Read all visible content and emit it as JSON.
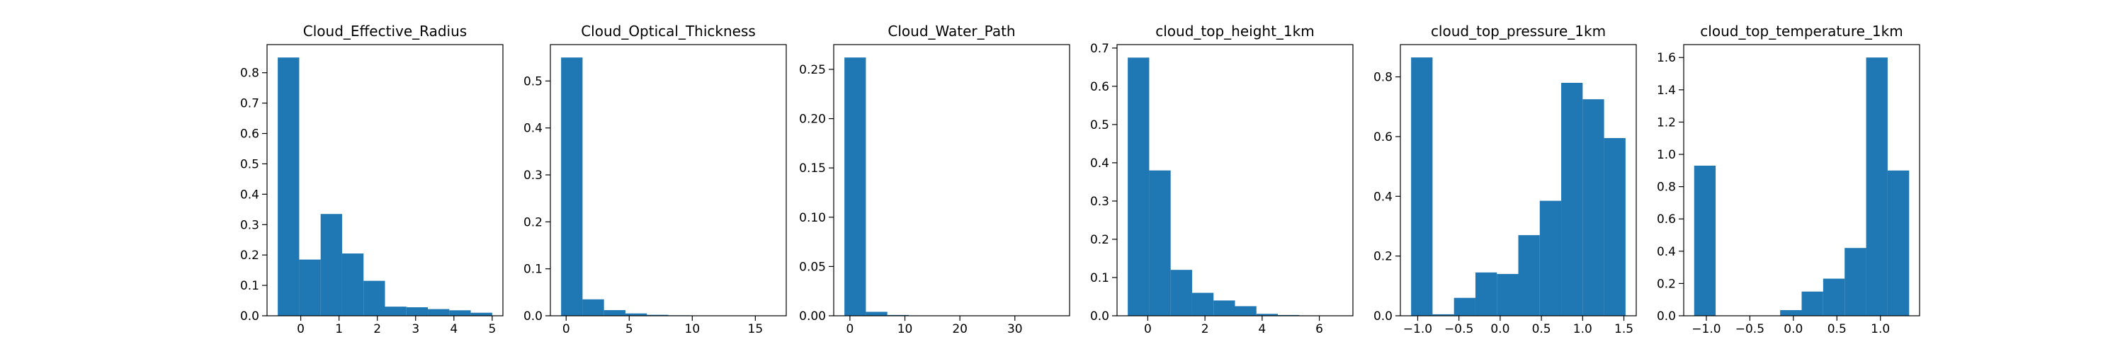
{
  "chart_data": [
    {
      "type": "histogram",
      "title": "Cloud_Effective_Radius",
      "color": "#1f77b4",
      "bins": [
        -0.6,
        -0.04,
        0.52,
        1.08,
        1.64,
        2.2,
        2.76,
        3.32,
        3.88,
        4.44,
        5.0
      ],
      "values": [
        0.85,
        0.185,
        0.335,
        0.205,
        0.115,
        0.03,
        0.028,
        0.022,
        0.018,
        0.01
      ],
      "xlim": [
        -0.88,
        5.28
      ],
      "xticks": [
        0,
        1,
        2,
        3,
        4,
        5
      ],
      "ylim": [
        0,
        0.8925
      ],
      "yticks": [
        {
          "value": 0,
          "label": "0.0"
        },
        0.1,
        0.2,
        0.3,
        0.4,
        0.5,
        0.6,
        0.7,
        0.8
      ]
    },
    {
      "type": "histogram",
      "title": "Cloud_Optical_Thickness",
      "color": "#1f77b4",
      "bins": [
        -0.4,
        1.3,
        3.0,
        4.7,
        6.4,
        8.1,
        9.8,
        11.5,
        13.2,
        14.9,
        16.6
      ],
      "values": [
        0.55,
        0.035,
        0.012,
        0.005,
        0.002,
        0.001,
        0.0005,
        0.0003,
        0.0002,
        0.0001
      ],
      "xlim": [
        -1.25,
        17.45
      ],
      "xticks": [
        0,
        5,
        10,
        15
      ],
      "ylim": [
        0,
        0.5775
      ],
      "yticks": [
        {
          "value": 0,
          "label": "0.0"
        },
        0.1,
        0.2,
        0.3,
        0.4,
        0.5
      ]
    },
    {
      "type": "histogram",
      "title": "Cloud_Water_Path",
      "color": "#1f77b4",
      "bins": [
        -1,
        2.9,
        6.8,
        10.7,
        14.6,
        18.5,
        22.4,
        26.3,
        30.2,
        34.1,
        38
      ],
      "values": [
        0.262,
        0.004,
        0.0008,
        0.0003,
        0.0001,
        5e-05,
        3e-05,
        2e-05,
        1e-05,
        1e-05
      ],
      "xlim": [
        -2.95,
        39.95
      ],
      "xticks": [
        0,
        10,
        20,
        30
      ],
      "ylim": [
        0,
        0.2751
      ],
      "yticks": [
        {
          "value": 0,
          "label": "0.00"
        },
        {
          "value": 0.05,
          "label": "0.05"
        },
        {
          "value": 0.1,
          "label": "0.10"
        },
        {
          "value": 0.15,
          "label": "0.15"
        },
        {
          "value": 0.2,
          "label": "0.20"
        },
        {
          "value": 0.25,
          "label": "0.25"
        }
      ]
    },
    {
      "type": "histogram",
      "title": "cloud_top_height_1km",
      "color": "#1f77b4",
      "bins": [
        -0.7,
        0.05,
        0.8,
        1.55,
        2.3,
        3.05,
        3.8,
        4.55,
        5.3,
        6.05,
        6.8
      ],
      "values": [
        0.675,
        0.38,
        0.12,
        0.06,
        0.04,
        0.025,
        0.005,
        0.002,
        0.001,
        0.0005
      ],
      "xlim": [
        -1.075,
        7.175
      ],
      "xticks": [
        0,
        2,
        4,
        6
      ],
      "ylim": [
        0,
        0.709
      ],
      "yticks": [
        {
          "value": 0,
          "label": "0.0"
        },
        0.1,
        0.2,
        0.3,
        0.4,
        0.5,
        0.6,
        0.7
      ]
    },
    {
      "type": "histogram",
      "title": "cloud_top_pressure_1km",
      "color": "#1f77b4",
      "bins": [
        -1.08,
        -0.82,
        -0.56,
        -0.3,
        -0.04,
        0.22,
        0.48,
        0.74,
        1.0,
        1.26,
        1.52
      ],
      "values": [
        0.865,
        0.005,
        0.06,
        0.145,
        0.14,
        0.27,
        0.385,
        0.78,
        0.725,
        0.595
      ],
      "xlim": [
        -1.21,
        1.65
      ],
      "xticks": [
        {
          "value": -1,
          "label": "−1.0"
        },
        {
          "value": -0.5,
          "label": "−0.5"
        },
        {
          "value": 0,
          "label": "0.0"
        },
        0.5,
        {
          "value": 1,
          "label": "1.0"
        },
        1.5
      ],
      "ylim": [
        0,
        0.908
      ],
      "yticks": [
        {
          "value": 0,
          "label": "0.0"
        },
        0.2,
        0.4,
        0.6,
        0.8
      ]
    },
    {
      "type": "histogram",
      "title": "cloud_top_temperature_1km",
      "color": "#1f77b4",
      "bins": [
        -1.14,
        -0.893,
        -0.646,
        -0.399,
        -0.152,
        0.095,
        0.342,
        0.589,
        0.836,
        1.083,
        1.33
      ],
      "values": [
        0.93,
        0,
        0,
        0,
        0.035,
        0.15,
        0.23,
        0.42,
        1.6,
        0.9
      ],
      "xlim": [
        -1.26,
        1.45
      ],
      "xticks": [
        {
          "value": -1,
          "label": "−1.0"
        },
        {
          "value": -0.5,
          "label": "−0.5"
        },
        {
          "value": 0,
          "label": "0.0"
        },
        0.5,
        {
          "value": 1,
          "label": "1.0"
        }
      ],
      "ylim": [
        0,
        1.68
      ],
      "yticks": [
        {
          "value": 0,
          "label": "0.0"
        },
        0.2,
        0.4,
        0.6,
        0.8,
        {
          "value": 1,
          "label": "1.0"
        },
        1.2,
        1.4,
        1.6
      ]
    }
  ]
}
